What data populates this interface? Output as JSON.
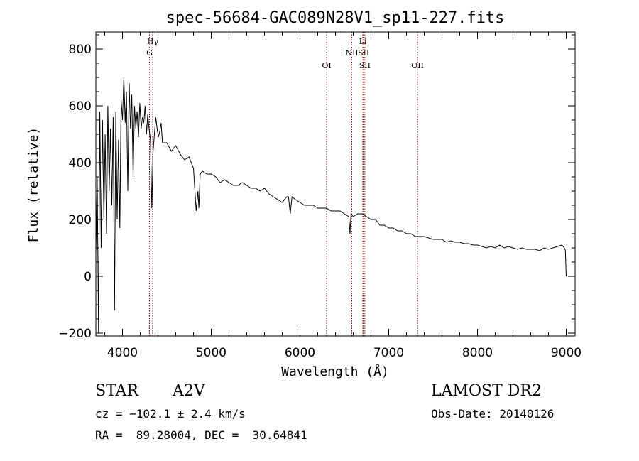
{
  "chart_data": {
    "type": "line",
    "title": "spec-56684-GAC089N28V1_sp11-227.fits",
    "xlabel": "Wavelength (Å)",
    "ylabel": "Flux (relative)",
    "xlim": [
      3700,
      9100
    ],
    "ylim": [
      -210,
      860
    ],
    "xticks": [
      4000,
      5000,
      6000,
      7000,
      8000,
      9000
    ],
    "yticks": [
      -200,
      0,
      200,
      400,
      600,
      800
    ],
    "xtick_labels": [
      "4000",
      "5000",
      "6000",
      "7000",
      "8000",
      "9000"
    ],
    "ytick_labels": [
      "−200",
      "0",
      "200",
      "400",
      "600",
      "800"
    ],
    "line_color": "#000000",
    "marker_color": "#8b0000",
    "spectrum": {
      "x": [
        3700,
        3715,
        3730,
        3745,
        3760,
        3775,
        3790,
        3805,
        3820,
        3835,
        3850,
        3865,
        3880,
        3895,
        3910,
        3925,
        3940,
        3955,
        3970,
        3985,
        4000,
        4015,
        4030,
        4045,
        4060,
        4075,
        4090,
        4105,
        4120,
        4135,
        4150,
        4165,
        4180,
        4195,
        4210,
        4225,
        4240,
        4255,
        4270,
        4285,
        4300,
        4315,
        4330,
        4345,
        4360,
        4375,
        4390,
        4405,
        4420,
        4435,
        4450,
        4500,
        4550,
        4600,
        4650,
        4700,
        4750,
        4800,
        4830,
        4850,
        4861,
        4875,
        4900,
        4950,
        5000,
        5050,
        5100,
        5150,
        5200,
        5250,
        5300,
        5350,
        5400,
        5450,
        5500,
        5550,
        5600,
        5650,
        5700,
        5750,
        5800,
        5850,
        5870,
        5890,
        5910,
        5950,
        6000,
        6050,
        6100,
        6150,
        6200,
        6250,
        6300,
        6350,
        6400,
        6450,
        6500,
        6550,
        6563,
        6575,
        6600,
        6650,
        6700,
        6750,
        6800,
        6850,
        6900,
        6950,
        7000,
        7050,
        7100,
        7150,
        7200,
        7250,
        7300,
        7350,
        7400,
        7450,
        7500,
        7550,
        7600,
        7650,
        7700,
        7750,
        7800,
        7850,
        7900,
        7950,
        8000,
        8050,
        8100,
        8150,
        8200,
        8250,
        8300,
        8350,
        8400,
        8450,
        8500,
        8550,
        8600,
        8650,
        8700,
        8750,
        8800,
        8850,
        8900,
        8950,
        8980,
        8990,
        9000
      ],
      "y": [
        80,
        350,
        -200,
        580,
        100,
        550,
        200,
        500,
        150,
        600,
        300,
        520,
        250,
        560,
        -120,
        580,
        200,
        480,
        170,
        620,
        550,
        700,
        540,
        650,
        300,
        680,
        520,
        640,
        350,
        600,
        520,
        580,
        490,
        610,
        520,
        560,
        540,
        600,
        500,
        570,
        520,
        480,
        240,
        440,
        500,
        560,
        520,
        490,
        510,
        540,
        470,
        470,
        440,
        460,
        430,
        410,
        420,
        380,
        230,
        300,
        240,
        360,
        370,
        360,
        360,
        350,
        330,
        340,
        330,
        320,
        320,
        330,
        320,
        310,
        310,
        300,
        310,
        290,
        280,
        270,
        260,
        280,
        280,
        220,
        280,
        270,
        260,
        250,
        250,
        250,
        240,
        240,
        240,
        230,
        230,
        230,
        220,
        210,
        150,
        220,
        210,
        220,
        220,
        210,
        200,
        200,
        180,
        180,
        170,
        170,
        160,
        160,
        150,
        150,
        140,
        140,
        140,
        135,
        130,
        130,
        130,
        120,
        125,
        120,
        120,
        115,
        115,
        110,
        110,
        105,
        100,
        105,
        100,
        110,
        100,
        105,
        100,
        95,
        100,
        95,
        95,
        95,
        90,
        100,
        95,
        100,
        105,
        110,
        100,
        90,
        0
      ]
    },
    "lines": [
      {
        "label": "Hγ",
        "x": 4340,
        "row": 1
      },
      {
        "label": "G",
        "x": 4304,
        "row": 2
      },
      {
        "label": "OI",
        "x": 6300,
        "row": 3
      },
      {
        "label": "Li",
        "x": 6708,
        "row": 1
      },
      {
        "label": "NII",
        "x": 6584,
        "row": 2
      },
      {
        "label": "SII",
        "x": 6717,
        "row": 2
      },
      {
        "label": "SII",
        "x": 6731,
        "row": 3
      },
      {
        "label": "OII",
        "x": 7325,
        "row": 3
      }
    ]
  },
  "footer": {
    "object_type": "STAR",
    "subclass": "A2V",
    "survey": "LAMOST DR2",
    "cz": "cz = −102.1 ± 2.4 km/s",
    "obs_date": "Obs-Date: 20140126",
    "coords": "RA =  89.28004, DEC =  30.64841"
  }
}
